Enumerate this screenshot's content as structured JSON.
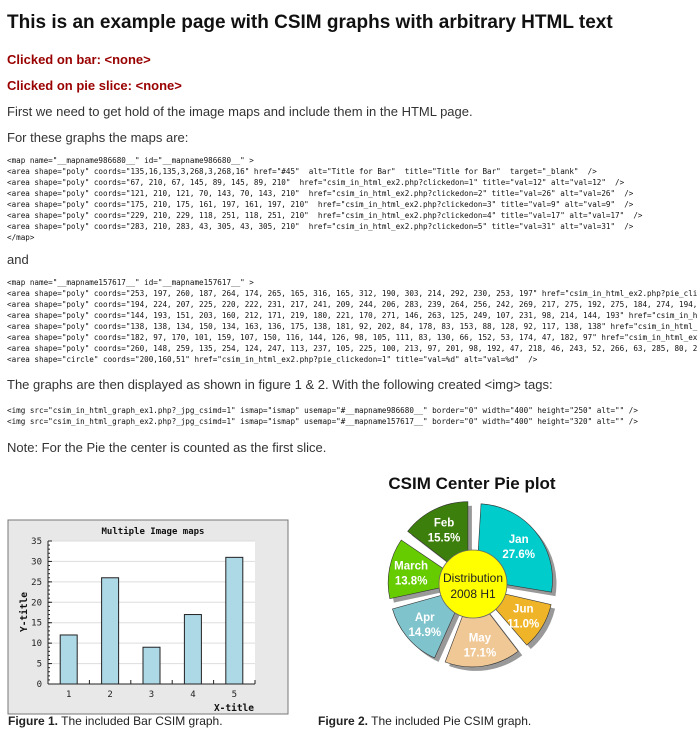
{
  "title": "This is an example page with CSIM graphs with arbitrary HTML text",
  "clicked_bar": "Clicked on bar: <none>",
  "clicked_pie": "Clicked on pie slice: <none>",
  "intro": "First we need to get hold of the image maps and include them in the HTML page.",
  "maps_intro": "For these graphs the maps are:",
  "map1": [
    "<map name=\"__mapname986680__\" id=\"__mapname986680__\" >",
    "<area shape=\"poly\" coords=\"135,16,135,3,268,3,268,16\" href=\"#45\"  alt=\"Title for Bar\"  title=\"Title for Bar\"  target=\"_blank\"  />",
    "<area shape=\"poly\" coords=\"67, 210, 67, 145, 89, 145, 89, 210\"  href=\"csim_in_html_ex2.php?clickedon=1\" title=\"val=12\" alt=\"val=12\"  />",
    "<area shape=\"poly\" coords=\"121, 210, 121, 70, 143, 70, 143, 210\"  href=\"csim_in_html_ex2.php?clickedon=2\" title=\"val=26\" alt=\"val=26\"  />",
    "<area shape=\"poly\" coords=\"175, 210, 175, 161, 197, 161, 197, 210\"  href=\"csim_in_html_ex2.php?clickedon=3\" title=\"val=9\" alt=\"val=9\"  />",
    "<area shape=\"poly\" coords=\"229, 210, 229, 118, 251, 118, 251, 210\"  href=\"csim_in_html_ex2.php?clickedon=4\" title=\"val=17\" alt=\"val=17\"  />",
    "<area shape=\"poly\" coords=\"283, 210, 283, 43, 305, 43, 305, 210\"  href=\"csim_in_html_ex2.php?clickedon=5\" title=\"val=31\" alt=\"val=31\"  />",
    "</map>"
  ],
  "and": "and",
  "map2": [
    "<map name=\"__mapname157617__\" id=\"__mapname157617__\" >",
    "<area shape=\"poly\" coords=\"253, 197, 260, 187, 264, 174, 265, 165, 316, 165, 312, 190, 303, 214, 292, 230, 253, 197\" href=\"csim_in_html_ex2.php?pie_cli",
    "<area shape=\"poly\" coords=\"194, 224, 207, 225, 220, 222, 231, 217, 241, 209, 244, 206, 283, 239, 264, 256, 242, 269, 217, 275, 192, 275, 184, 274, 194,",
    "<area shape=\"poly\" coords=\"144, 193, 151, 203, 160, 212, 171, 219, 180, 221, 170, 271, 146, 263, 125, 249, 107, 231, 98, 214, 144, 193\" href=\"csim_in_h",
    "<area shape=\"poly\" coords=\"138, 138, 134, 150, 134, 163, 136, 175, 138, 181, 92, 202, 84, 178, 83, 153, 88, 128, 92, 117, 138, 138\" href=\"csim_in_html_",
    "<area shape=\"poly\" coords=\"182, 97, 170, 101, 159, 107, 150, 116, 144, 126, 98, 105, 111, 83, 130, 66, 152, 53, 174, 47, 182, 97\" href=\"csim_in_html_ex",
    "<area shape=\"poly\" coords=\"260, 148, 259, 135, 254, 124, 247, 113, 237, 105, 225, 100, 213, 97, 201, 98, 192, 47, 218, 46, 243, 52, 266, 63, 285, 80, 2",
    "<area shape=\"circle\" coords=\"200,160,51\" href=\"csim_in_html_ex2.php?pie_clickedon=1\" title=\"val=%d\" alt=\"val=%d\"  />"
  ],
  "display_intro": "The graphs are then displayed as shown in figure 1 & 2. With the following created <img> tags:",
  "img_tags": [
    "<img src=\"csim_in_html_graph_ex1.php?_jpg_csimd=1\" ismap=\"ismap\" usemap=\"#__mapname986680__\" border=\"0\" width=\"400\" height=\"250\" alt=\"\" />",
    "<img src=\"csim_in_html_graph_ex2.php?_jpg_csimd=1\" ismap=\"ismap\" usemap=\"#__mapname157617__\" border=\"0\" width=\"400\" height=\"320\" alt=\"\" />"
  ],
  "note": "Note: For the Pie the center is counted as the first slice.",
  "figure1": {
    "label": "Figure 1.",
    "text": " The included Bar CSIM graph."
  },
  "figure2": {
    "label": "Figure 2.",
    "text": " The included Pie CSIM graph."
  },
  "chart_data": [
    {
      "type": "bar",
      "title": "Multiple Image maps",
      "xlabel": "X-title",
      "ylabel": "Y-title",
      "categories": [
        "1",
        "2",
        "3",
        "4",
        "5"
      ],
      "values": [
        12,
        26,
        9,
        17,
        31
      ],
      "ylim": [
        0,
        35
      ],
      "yticks": [
        0,
        5,
        10,
        15,
        20,
        25,
        30,
        35
      ],
      "grid": true,
      "bar_color": "#add8e6",
      "background": "#e8e8e8"
    },
    {
      "type": "pie",
      "title": "CSIM Center Pie plot",
      "center_label": [
        "Distribution",
        "2008 H1"
      ],
      "center_color": "#ffff00",
      "slices": [
        {
          "label": "Jan",
          "value": 27.6,
          "color": "#00cccc"
        },
        {
          "label": "Jun",
          "value": 11.0,
          "color": "#f0b429"
        },
        {
          "label": "May",
          "value": 17.1,
          "color": "#f0c896"
        },
        {
          "label": "Apr",
          "value": 14.9,
          "color": "#7fc3cc"
        },
        {
          "label": "March",
          "value": 13.8,
          "color": "#66cc00"
        },
        {
          "label": "Feb",
          "value": 15.5,
          "color": "#3d7f0c"
        }
      ]
    }
  ]
}
